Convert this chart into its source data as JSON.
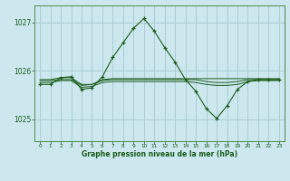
{
  "title": "Graphe pression niveau de la mer (hPa)",
  "bg_color": "#cce8ee",
  "grid_color": "#aacdd6",
  "line_color": "#1a5c1a",
  "xlim": [
    -0.5,
    23.5
  ],
  "ylim": [
    1024.55,
    1027.35
  ],
  "yticks": [
    1025,
    1026,
    1027
  ],
  "xtick_labels": [
    "0",
    "1",
    "2",
    "3",
    "4",
    "5",
    "6",
    "7",
    "8",
    "9",
    "10",
    "11",
    "12",
    "13",
    "14",
    "15",
    "16",
    "17",
    "18",
    "19",
    "20",
    "21",
    "22",
    "23"
  ],
  "main_series": [
    1025.72,
    1025.72,
    1025.86,
    1025.88,
    1025.62,
    1025.65,
    1025.88,
    1026.28,
    1026.58,
    1026.88,
    1027.08,
    1026.82,
    1026.48,
    1026.18,
    1025.82,
    1025.58,
    1025.22,
    1025.02,
    1025.28,
    1025.62,
    1025.78,
    1025.82,
    1025.82,
    1025.82
  ],
  "flat_line1": [
    1025.82,
    1025.82,
    1025.86,
    1025.86,
    1025.72,
    1025.72,
    1025.82,
    1025.84,
    1025.84,
    1025.84,
    1025.84,
    1025.84,
    1025.84,
    1025.84,
    1025.84,
    1025.84,
    1025.84,
    1025.84,
    1025.84,
    1025.84,
    1025.84,
    1025.84,
    1025.84,
    1025.84
  ],
  "flat_line2": [
    1025.8,
    1025.8,
    1025.82,
    1025.82,
    1025.7,
    1025.72,
    1025.8,
    1025.82,
    1025.82,
    1025.82,
    1025.82,
    1025.82,
    1025.82,
    1025.82,
    1025.82,
    1025.82,
    1025.78,
    1025.76,
    1025.76,
    1025.78,
    1025.82,
    1025.82,
    1025.82,
    1025.82
  ],
  "flat_line3": [
    1025.76,
    1025.76,
    1025.8,
    1025.8,
    1025.66,
    1025.68,
    1025.76,
    1025.78,
    1025.78,
    1025.78,
    1025.78,
    1025.78,
    1025.78,
    1025.78,
    1025.78,
    1025.76,
    1025.72,
    1025.7,
    1025.7,
    1025.72,
    1025.78,
    1025.8,
    1025.8,
    1025.8
  ]
}
